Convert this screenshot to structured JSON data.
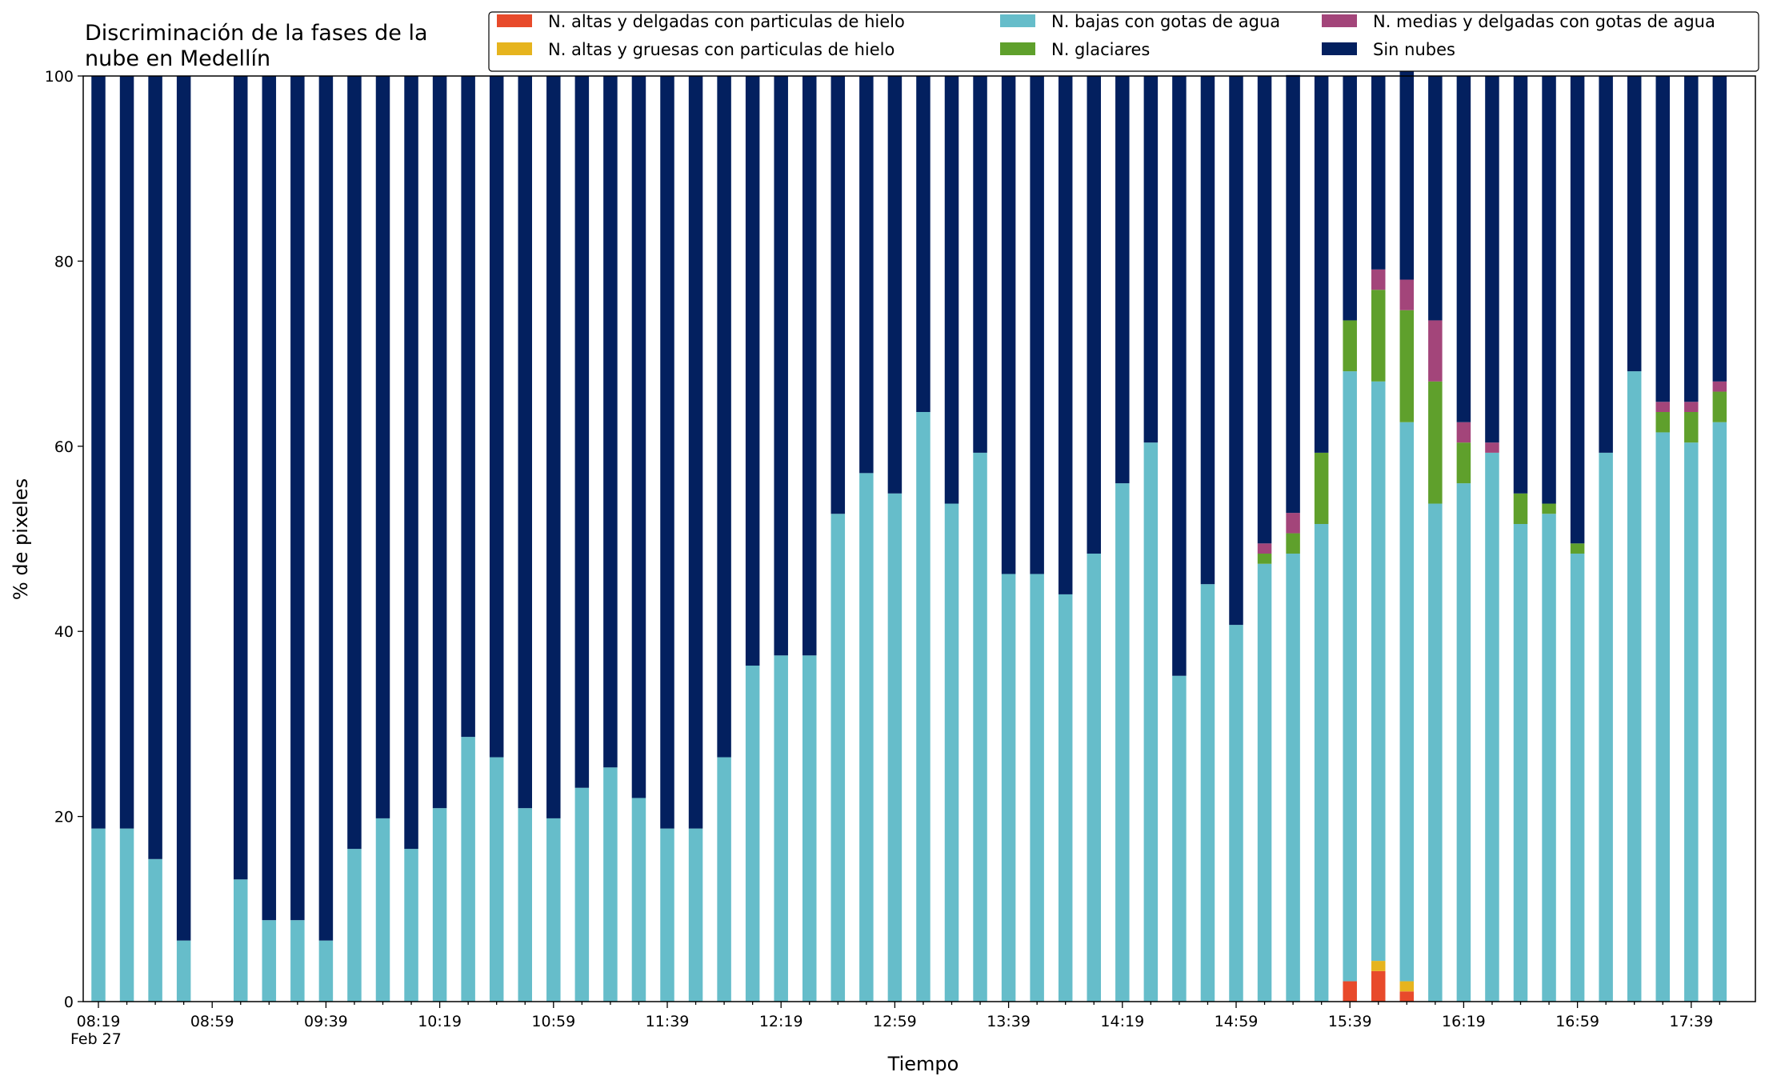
{
  "chart_data": {
    "type": "bar",
    "stacked": true,
    "title": "Discriminación de la fases de la\nnube en Medellín",
    "xlabel": "Tiempo",
    "ylabel": "% de pixeles",
    "ylim": [
      0,
      100
    ],
    "yticks": [
      0,
      20,
      40,
      60,
      80,
      100
    ],
    "grid": false,
    "legend_position": "top-right",
    "x_start": "08:19",
    "x_step_minutes": 10,
    "x_tick_labels": [
      "08:19",
      "08:59",
      "09:39",
      "10:19",
      "10:59",
      "11:39",
      "12:19",
      "12:59",
      "13:39",
      "14:19",
      "14:59",
      "15:39",
      "16:19",
      "16:59",
      "17:39"
    ],
    "x_date_label": "Feb 27",
    "categories": [
      "08:19",
      "08:29",
      "08:39",
      "08:49",
      "08:59",
      "09:09",
      "09:19",
      "09:29",
      "09:39",
      "09:49",
      "09:59",
      "10:09",
      "10:19",
      "10:29",
      "10:39",
      "10:49",
      "10:59",
      "11:09",
      "11:19",
      "11:29",
      "11:39",
      "11:49",
      "11:59",
      "12:09",
      "12:19",
      "12:29",
      "12:39",
      "12:49",
      "12:59",
      "13:09",
      "13:19",
      "13:29",
      "13:39",
      "13:49",
      "13:59",
      "14:09",
      "14:19",
      "14:29",
      "14:39",
      "14:49",
      "14:59",
      "15:09",
      "15:19",
      "15:29",
      "15:39",
      "15:49",
      "15:59",
      "16:09",
      "16:19",
      "16:29",
      "16:39",
      "16:49",
      "16:59",
      "17:09",
      "17:19",
      "17:29",
      "17:39",
      "17:49"
    ],
    "series": [
      {
        "name": "N. altas y delgadas con particulas de hielo",
        "color": "#e84a2b",
        "values": [
          0,
          0,
          0,
          0,
          0,
          0,
          0,
          0,
          0,
          0,
          0,
          0,
          0,
          0,
          0,
          0,
          0,
          0,
          0,
          0,
          0,
          0,
          0,
          0,
          0,
          0,
          0,
          0,
          0,
          0,
          0,
          0,
          0,
          0,
          0,
          0,
          0,
          0,
          0,
          0,
          0,
          0,
          0,
          0,
          2.2,
          3.3,
          1.1,
          0,
          0,
          0,
          0,
          0,
          0,
          0,
          0,
          0,
          0,
          0
        ]
      },
      {
        "name": "N. altas y gruesas con particulas de hielo",
        "color": "#e6b41e",
        "values": [
          0,
          0,
          0,
          0,
          0,
          0,
          0,
          0,
          0,
          0,
          0,
          0,
          0,
          0,
          0,
          0,
          0,
          0,
          0,
          0,
          0,
          0,
          0,
          0,
          0,
          0,
          0,
          0,
          0,
          0,
          0,
          0,
          0,
          0,
          0,
          0,
          0,
          0,
          0,
          0,
          0,
          0,
          0,
          0,
          0,
          1.1,
          1.1,
          0,
          0,
          0,
          0,
          0,
          0,
          0,
          0,
          0,
          0,
          0
        ]
      },
      {
        "name": "N. bajas con gotas de agua",
        "color": "#66bdca",
        "values": [
          18.7,
          18.7,
          15.4,
          6.6,
          null,
          13.2,
          8.8,
          8.8,
          6.6,
          16.5,
          19.8,
          16.5,
          20.9,
          28.6,
          26.4,
          20.9,
          19.8,
          23.1,
          25.3,
          22.0,
          18.7,
          18.7,
          26.4,
          36.3,
          37.4,
          37.4,
          52.7,
          57.1,
          54.9,
          63.7,
          53.8,
          59.3,
          46.2,
          46.2,
          44.0,
          48.4,
          56.0,
          60.4,
          35.2,
          45.1,
          40.7,
          47.3,
          48.4,
          51.6,
          65.9,
          62.6,
          60.4,
          53.8,
          56.0,
          59.3,
          51.6,
          52.7,
          48.4,
          59.3,
          68.1,
          61.5,
          60.4,
          62.6
        ]
      },
      {
        "name": "N. glaciares",
        "color": "#5fa02c",
        "values": [
          0,
          0,
          0,
          0,
          null,
          0,
          0,
          0,
          0,
          0,
          0,
          0,
          0,
          0,
          0,
          0,
          0,
          0,
          0,
          0,
          0,
          0,
          0,
          0,
          0,
          0,
          0,
          0,
          0,
          0,
          0,
          0,
          0,
          0,
          0,
          0,
          0,
          0,
          0,
          0,
          0,
          1.1,
          2.2,
          7.7,
          5.5,
          9.9,
          12.1,
          13.2,
          4.4,
          0,
          3.3,
          1.1,
          1.1,
          0,
          0,
          2.2,
          3.3,
          3.3
        ]
      },
      {
        "name": "N. medias y delgadas con gotas de agua",
        "color": "#a3457a",
        "values": [
          0,
          0,
          0,
          0,
          null,
          0,
          0,
          0,
          0,
          0,
          0,
          0,
          0,
          0,
          0,
          0,
          0,
          0,
          0,
          0,
          0,
          0,
          0,
          0,
          0,
          0,
          0,
          0,
          0,
          0,
          0,
          0,
          0,
          0,
          0,
          0,
          0,
          0,
          0,
          0,
          0,
          1.1,
          2.2,
          0,
          0,
          2.2,
          3.3,
          6.6,
          2.2,
          1.1,
          0,
          0,
          0,
          0,
          0,
          1.1,
          1.1,
          1.1
        ]
      },
      {
        "name": "Sin nubes",
        "color": "#03205f",
        "values": [
          81.3,
          81.3,
          84.6,
          93.4,
          null,
          86.8,
          91.2,
          91.2,
          93.4,
          83.5,
          80.2,
          83.5,
          79.1,
          71.4,
          73.6,
          79.1,
          80.2,
          76.9,
          74.7,
          78.0,
          81.3,
          81.3,
          73.6,
          63.7,
          62.6,
          62.6,
          47.3,
          42.9,
          45.1,
          36.3,
          46.2,
          40.7,
          53.8,
          53.8,
          56.0,
          51.6,
          44.0,
          39.6,
          64.8,
          54.9,
          59.3,
          50.5,
          47.3,
          40.7,
          26.4,
          20.9,
          23.1,
          26.4,
          37.4,
          39.6,
          45.1,
          46.2,
          50.5,
          40.7,
          31.9,
          35.2,
          35.2,
          33.0
        ]
      }
    ]
  }
}
